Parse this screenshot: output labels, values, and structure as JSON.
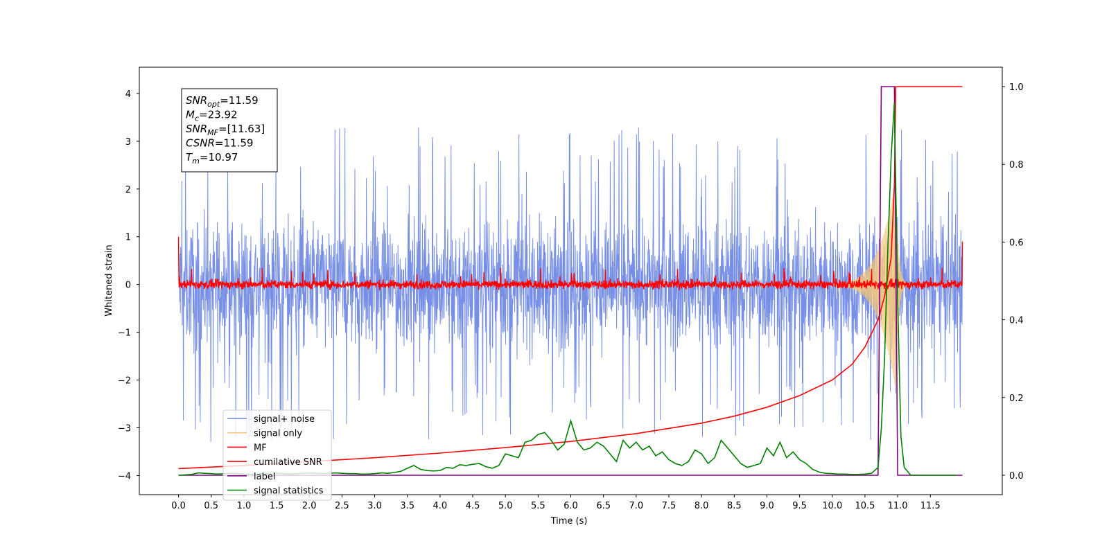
{
  "chart_data": {
    "type": "line",
    "title": "",
    "xlabel": "Time (s)",
    "ylabel": "Whitened strain",
    "xlim": [
      -0.6,
      12.6
    ],
    "ylim_left": [
      -4.4,
      4.55
    ],
    "ylim_right": [
      -0.05,
      1.05
    ],
    "x_ticks": [
      0.0,
      0.5,
      1.0,
      1.5,
      2.0,
      2.5,
      3.0,
      3.5,
      4.0,
      4.5,
      5.0,
      5.5,
      6.0,
      6.5,
      7.0,
      7.5,
      8.0,
      8.5,
      9.0,
      9.5,
      10.0,
      10.5,
      11.0,
      11.5
    ],
    "x_tick_labels": [
      "0.0",
      "0.5",
      "1.0",
      "1.5",
      "2.0",
      "2.5",
      "3.0",
      "3.5",
      "4.0",
      "4.5",
      "5.0",
      "5.5",
      "6.0",
      "6.5",
      "7.0",
      "7.5",
      "8.0",
      "8.5",
      "9.0",
      "9.5",
      "10.0",
      "10.5",
      "11.0",
      "11.5"
    ],
    "y_ticks_left": [
      -4,
      -3,
      -2,
      -1,
      0,
      1,
      2,
      3,
      4
    ],
    "y_tick_labels_left": [
      "−4",
      "−3",
      "−2",
      "−1",
      "0",
      "1",
      "2",
      "3",
      "4"
    ],
    "y_ticks_right": [
      0.0,
      0.2,
      0.4,
      0.6,
      0.8,
      1.0
    ],
    "y_tick_labels_right": [
      "0.0",
      "0.2",
      "0.4",
      "0.6",
      "0.8",
      "1.0"
    ],
    "legend_position": "bottom-left",
    "grid": false,
    "series": [
      {
        "name": "signal+ noise",
        "color": "#6b86e3",
        "axis": "left",
        "kind": "noise",
        "x_range": [
          0.0,
          11.99
        ],
        "amplitude_typical": 1.2,
        "peak_max": 3.6,
        "peak_min": -3.35
      },
      {
        "name": "signal only",
        "color": "#f5c77a",
        "axis": "left",
        "kind": "chirp",
        "x_range": [
          0.0,
          11.99
        ],
        "peak_time": 10.97,
        "peak_amplitude": 2.2
      },
      {
        "name": "MF",
        "color": "#ff0000",
        "axis": "left",
        "kind": "noise",
        "x_range": [
          0.0,
          11.99
        ],
        "amplitude_typical": 0.1,
        "peak_max": 0.35,
        "start_value": 1.0,
        "end_value": 0.9
      },
      {
        "name": "cumilative SNR",
        "color": "#ff0000",
        "axis": "right",
        "x": [
          0.0,
          1.0,
          2.0,
          3.0,
          4.0,
          5.0,
          6.0,
          7.0,
          8.0,
          8.5,
          9.0,
          9.5,
          10.0,
          10.3,
          10.5,
          10.7,
          10.8,
          10.9,
          10.95,
          10.97,
          11.99
        ],
        "values": [
          0.017,
          0.025,
          0.035,
          0.045,
          0.057,
          0.071,
          0.087,
          0.107,
          0.134,
          0.152,
          0.175,
          0.205,
          0.245,
          0.285,
          0.33,
          0.4,
          0.46,
          0.56,
          0.75,
          1.0,
          1.0
        ]
      },
      {
        "name": "label",
        "color": "#800080",
        "axis": "right",
        "x": [
          0.0,
          10.7,
          10.75,
          10.95,
          11.0,
          11.99
        ],
        "values": [
          0.0,
          0.0,
          1.0,
          1.0,
          0.0,
          0.0
        ]
      },
      {
        "name": "signal statistics",
        "color": "#008000",
        "axis": "right",
        "x": [
          0.0,
          0.1,
          0.2,
          0.3,
          0.4,
          0.5,
          0.6,
          0.7,
          0.8,
          0.9,
          1.0,
          1.1,
          1.2,
          1.3,
          1.4,
          1.5,
          1.6,
          1.7,
          1.8,
          1.9,
          2.0,
          2.1,
          2.2,
          2.3,
          2.4,
          2.5,
          2.6,
          2.7,
          2.8,
          2.9,
          3.0,
          3.1,
          3.2,
          3.3,
          3.4,
          3.5,
          3.6,
          3.7,
          3.8,
          3.9,
          4.0,
          4.1,
          4.2,
          4.3,
          4.4,
          4.5,
          4.6,
          4.7,
          4.8,
          4.9,
          5.0,
          5.1,
          5.2,
          5.3,
          5.4,
          5.5,
          5.6,
          5.7,
          5.8,
          5.9,
          6.0,
          6.1,
          6.2,
          6.3,
          6.4,
          6.5,
          6.6,
          6.7,
          6.8,
          6.9,
          7.0,
          7.1,
          7.2,
          7.3,
          7.4,
          7.5,
          7.6,
          7.7,
          7.8,
          7.9,
          8.0,
          8.1,
          8.2,
          8.3,
          8.4,
          8.5,
          8.6,
          8.7,
          8.8,
          8.9,
          9.0,
          9.1,
          9.2,
          9.3,
          9.4,
          9.5,
          9.6,
          9.7,
          9.8,
          9.9,
          10.0,
          10.1,
          10.2,
          10.3,
          10.4,
          10.5,
          10.6,
          10.7,
          10.75,
          10.8,
          10.85,
          10.9,
          10.95,
          11.0,
          11.05,
          11.1,
          11.2,
          11.5,
          11.9
        ],
        "values": [
          0.0,
          0.001,
          0.002,
          0.006,
          0.005,
          0.004,
          0.003,
          0.004,
          0.005,
          0.004,
          0.003,
          0.002,
          0.003,
          0.004,
          0.004,
          0.005,
          0.004,
          0.003,
          0.004,
          0.005,
          0.006,
          0.005,
          0.004,
          0.005,
          0.006,
          0.005,
          0.004,
          0.004,
          0.003,
          0.003,
          0.004,
          0.006,
          0.005,
          0.007,
          0.01,
          0.018,
          0.025,
          0.015,
          0.012,
          0.011,
          0.012,
          0.02,
          0.018,
          0.027,
          0.025,
          0.028,
          0.03,
          0.022,
          0.018,
          0.025,
          0.055,
          0.05,
          0.045,
          0.085,
          0.09,
          0.105,
          0.11,
          0.09,
          0.065,
          0.08,
          0.14,
          0.085,
          0.065,
          0.07,
          0.085,
          0.075,
          0.055,
          0.035,
          0.09,
          0.07,
          0.085,
          0.065,
          0.075,
          0.05,
          0.06,
          0.04,
          0.03,
          0.025,
          0.035,
          0.065,
          0.055,
          0.03,
          0.045,
          0.09,
          0.07,
          0.05,
          0.03,
          0.02,
          0.025,
          0.03,
          0.07,
          0.05,
          0.085,
          0.045,
          0.06,
          0.04,
          0.03,
          0.015,
          0.008,
          0.005,
          0.004,
          0.003,
          0.003,
          0.002,
          0.002,
          0.003,
          0.005,
          0.02,
          0.12,
          0.3,
          0.58,
          0.82,
          0.96,
          0.45,
          0.1,
          0.02,
          0.0,
          0.0,
          0.0
        ]
      }
    ],
    "annotation_box": {
      "position": "top-left",
      "lines": [
        {
          "base": "SNR",
          "sub": "opt",
          "rest": "=11.59"
        },
        {
          "base": "M",
          "sub": "c",
          "rest": "=23.92"
        },
        {
          "base": "SNR",
          "sub": "MF",
          "rest": "=[11.63]"
        },
        {
          "base": "CSNR",
          "sub": "",
          "rest": "=11.59"
        },
        {
          "base": "T",
          "sub": "m",
          "rest": "=10.97"
        }
      ]
    }
  }
}
